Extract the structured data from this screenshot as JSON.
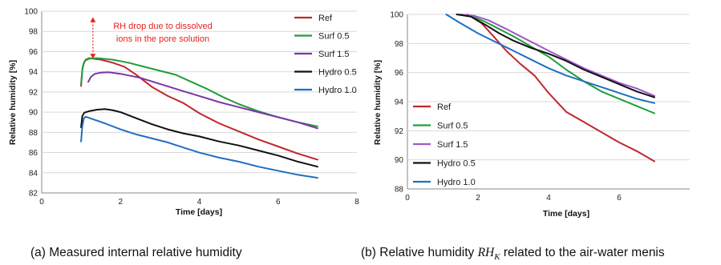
{
  "captions": {
    "a": "(a) Measured internal relative humidity",
    "b_pre": "(b) Relative humidity ",
    "b_rh": "RH",
    "b_sub": "K",
    "b_post": " related to the air-water menis"
  },
  "chart_data": [
    {
      "type": "line",
      "title": "",
      "xlabel": "Time [days]",
      "ylabel": "Relative humidity [%]",
      "xlim": [
        0,
        8
      ],
      "ylim": [
        82,
        100
      ],
      "xticks": [
        0,
        2,
        4,
        6,
        8
      ],
      "yticks": [
        82,
        84,
        86,
        88,
        90,
        92,
        94,
        96,
        98,
        100
      ],
      "grid": "horizontal",
      "legend_position": "top-right",
      "annotation": {
        "text": [
          "RH drop due to dissolved",
          "ions in the pore solution"
        ],
        "color": "#e8211e",
        "arrow_x": 1.3,
        "arrow_y": [
          99.4,
          95.3
        ]
      },
      "series": [
        {
          "name": "Ref",
          "color": "#c0272d",
          "points": [
            [
              1.0,
              92.6
            ],
            [
              1.03,
              94.2
            ],
            [
              1.07,
              94.9
            ],
            [
              1.12,
              95.2
            ],
            [
              1.2,
              95.35
            ],
            [
              1.3,
              95.3
            ],
            [
              1.5,
              95.2
            ],
            [
              1.8,
              94.9
            ],
            [
              2.1,
              94.5
            ],
            [
              2.4,
              93.7
            ],
            [
              2.8,
              92.5
            ],
            [
              3.2,
              91.6
            ],
            [
              3.6,
              90.9
            ],
            [
              4.0,
              89.9
            ],
            [
              4.5,
              88.9
            ],
            [
              5.0,
              88.1
            ],
            [
              5.5,
              87.3
            ],
            [
              6.0,
              86.6
            ],
            [
              6.5,
              85.9
            ],
            [
              7.0,
              85.3
            ]
          ]
        },
        {
          "name": "Surf 0.5",
          "color": "#1e9e3c",
          "points": [
            [
              1.0,
              92.8
            ],
            [
              1.04,
              94.5
            ],
            [
              1.1,
              95.1
            ],
            [
              1.2,
              95.3
            ],
            [
              1.4,
              95.35
            ],
            [
              1.8,
              95.2
            ],
            [
              2.2,
              94.9
            ],
            [
              2.6,
              94.5
            ],
            [
              3.0,
              94.1
            ],
            [
              3.4,
              93.7
            ],
            [
              3.8,
              93.0
            ],
            [
              4.2,
              92.3
            ],
            [
              4.6,
              91.5
            ],
            [
              5.0,
              90.8
            ],
            [
              5.5,
              90.1
            ],
            [
              6.0,
              89.5
            ],
            [
              6.5,
              89.0
            ],
            [
              7.0,
              88.6
            ]
          ]
        },
        {
          "name": "Surf 1.5",
          "color": "#7a35a8",
          "points": [
            [
              1.18,
              93.0
            ],
            [
              1.25,
              93.5
            ],
            [
              1.35,
              93.8
            ],
            [
              1.5,
              93.92
            ],
            [
              1.7,
              93.95
            ],
            [
              2.0,
              93.8
            ],
            [
              2.5,
              93.4
            ],
            [
              3.0,
              92.8
            ],
            [
              3.5,
              92.2
            ],
            [
              4.0,
              91.6
            ],
            [
              4.5,
              91.0
            ],
            [
              5.0,
              90.5
            ],
            [
              5.5,
              90.0
            ],
            [
              6.0,
              89.5
            ],
            [
              6.5,
              89.0
            ],
            [
              7.0,
              88.4
            ]
          ]
        },
        {
          "name": "Hydro 0.5",
          "color": "#111111",
          "points": [
            [
              1.0,
              88.5
            ],
            [
              1.03,
              89.6
            ],
            [
              1.08,
              89.95
            ],
            [
              1.2,
              90.1
            ],
            [
              1.4,
              90.25
            ],
            [
              1.6,
              90.3
            ],
            [
              1.8,
              90.2
            ],
            [
              2.0,
              90.0
            ],
            [
              2.4,
              89.4
            ],
            [
              2.8,
              88.8
            ],
            [
              3.2,
              88.3
            ],
            [
              3.6,
              87.9
            ],
            [
              4.0,
              87.6
            ],
            [
              4.5,
              87.1
            ],
            [
              5.0,
              86.7
            ],
            [
              5.5,
              86.2
            ],
            [
              6.0,
              85.7
            ],
            [
              6.5,
              85.1
            ],
            [
              7.0,
              84.6
            ]
          ]
        },
        {
          "name": "Hydro 1.0",
          "color": "#1f6fc2",
          "points": [
            [
              1.0,
              87.1
            ],
            [
              1.03,
              88.6
            ],
            [
              1.07,
              89.4
            ],
            [
              1.12,
              89.55
            ],
            [
              1.3,
              89.3
            ],
            [
              1.6,
              88.9
            ],
            [
              2.0,
              88.3
            ],
            [
              2.4,
              87.8
            ],
            [
              2.8,
              87.4
            ],
            [
              3.2,
              87.0
            ],
            [
              3.6,
              86.5
            ],
            [
              4.0,
              86.0
            ],
            [
              4.5,
              85.5
            ],
            [
              5.0,
              85.1
            ],
            [
              5.5,
              84.6
            ],
            [
              6.0,
              84.2
            ],
            [
              6.5,
              83.8
            ],
            [
              7.0,
              83.5
            ]
          ]
        }
      ]
    },
    {
      "type": "line",
      "title": "",
      "xlabel": "Time [days]",
      "ylabel": "Relative humidity [%]",
      "xlim": [
        0,
        8
      ],
      "ylim": [
        88,
        100
      ],
      "xticks": [
        0,
        2,
        4,
        6
      ],
      "yticks": [
        88,
        90,
        92,
        94,
        96,
        98,
        100
      ],
      "grid": "horizontal",
      "legend_position": "bottom-left",
      "series": [
        {
          "name": "Ref",
          "color": "#c0272d",
          "points": [
            [
              1.7,
              100.0
            ],
            [
              1.9,
              99.7
            ],
            [
              2.1,
              99.4
            ],
            [
              2.4,
              98.6
            ],
            [
              2.8,
              97.5
            ],
            [
              3.2,
              96.6
            ],
            [
              3.6,
              95.8
            ],
            [
              4.0,
              94.6
            ],
            [
              4.5,
              93.3
            ],
            [
              5.0,
              92.6
            ],
            [
              5.5,
              91.9
            ],
            [
              6.0,
              91.2
            ],
            [
              6.5,
              90.6
            ],
            [
              7.0,
              89.9
            ]
          ]
        },
        {
          "name": "Surf 0.5",
          "color": "#1e9e3c",
          "points": [
            [
              1.4,
              100.0
            ],
            [
              1.8,
              99.9
            ],
            [
              2.2,
              99.5
            ],
            [
              2.6,
              99.0
            ],
            [
              3.0,
              98.5
            ],
            [
              3.5,
              97.8
            ],
            [
              4.0,
              97.1
            ],
            [
              4.5,
              96.2
            ],
            [
              5.0,
              95.4
            ],
            [
              5.5,
              94.7
            ],
            [
              6.0,
              94.2
            ],
            [
              6.5,
              93.7
            ],
            [
              7.0,
              93.2
            ]
          ]
        },
        {
          "name": "Surf 1.5",
          "color": "#a05ac8",
          "points": [
            [
              1.5,
              100.0
            ],
            [
              1.9,
              99.9
            ],
            [
              2.3,
              99.6
            ],
            [
              2.8,
              99.0
            ],
            [
              3.2,
              98.5
            ],
            [
              3.6,
              98.0
            ],
            [
              4.0,
              97.5
            ],
            [
              4.5,
              96.9
            ],
            [
              5.0,
              96.3
            ],
            [
              5.5,
              95.8
            ],
            [
              6.0,
              95.3
            ],
            [
              6.5,
              94.9
            ],
            [
              7.0,
              94.4
            ]
          ]
        },
        {
          "name": "Hydro 0.5",
          "color": "#111111",
          "points": [
            [
              1.4,
              100.0
            ],
            [
              1.8,
              99.85
            ],
            [
              2.2,
              99.3
            ],
            [
              2.6,
              98.7
            ],
            [
              3.0,
              98.2
            ],
            [
              3.5,
              97.7
            ],
            [
              4.0,
              97.3
            ],
            [
              4.5,
              96.8
            ],
            [
              5.0,
              96.2
            ],
            [
              5.5,
              95.7
            ],
            [
              6.0,
              95.2
            ],
            [
              6.5,
              94.7
            ],
            [
              7.0,
              94.3
            ]
          ]
        },
        {
          "name": "Hydro 1.0",
          "color": "#1f6fc2",
          "points": [
            [
              1.1,
              100.0
            ],
            [
              1.5,
              99.4
            ],
            [
              2.0,
              98.7
            ],
            [
              2.5,
              98.1
            ],
            [
              3.0,
              97.5
            ],
            [
              3.5,
              96.9
            ],
            [
              4.0,
              96.3
            ],
            [
              4.5,
              95.8
            ],
            [
              5.0,
              95.4
            ],
            [
              5.5,
              95.0
            ],
            [
              6.0,
              94.6
            ],
            [
              6.5,
              94.2
            ],
            [
              7.0,
              93.9
            ]
          ]
        }
      ]
    }
  ]
}
